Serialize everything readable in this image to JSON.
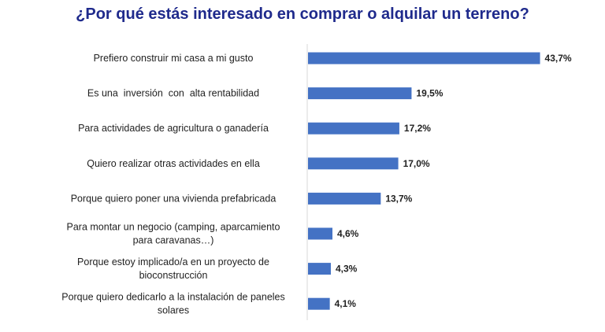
{
  "chart_data": {
    "type": "bar",
    "orientation": "horizontal",
    "title": "¿Por qué estás interesado en comprar o alquilar un terreno?",
    "categories": [
      [
        "Prefiero construir mi casa a mi gusto"
      ],
      [
        "Es una  inversión  con  alta rentabilidad"
      ],
      [
        "Para actividades de agricultura o ganadería"
      ],
      [
        "Quiero realizar otras actividades en ella"
      ],
      [
        "Porque quiero poner una vivienda prefabricada"
      ],
      [
        "Para montar un negocio (camping, aparcamiento",
        "para caravanas…)"
      ],
      [
        "Porque estoy implicado/a en un proyecto de",
        "bioconstrucción"
      ],
      [
        "Porque quiero dedicarlo a la instalación de paneles",
        "solares"
      ]
    ],
    "values": [
      43.7,
      19.5,
      17.2,
      17.0,
      13.7,
      4.6,
      4.3,
      4.1
    ],
    "value_labels": [
      "43,7%",
      "19,5%",
      "17,2%",
      "17,0%",
      "13,7%",
      "4,6%",
      "4,3%",
      "4,1%"
    ],
    "xlim": [
      0,
      50
    ],
    "grid": false,
    "legend": "none",
    "bar_color": "#4472c4",
    "title_color": "#1f2a8c"
  }
}
